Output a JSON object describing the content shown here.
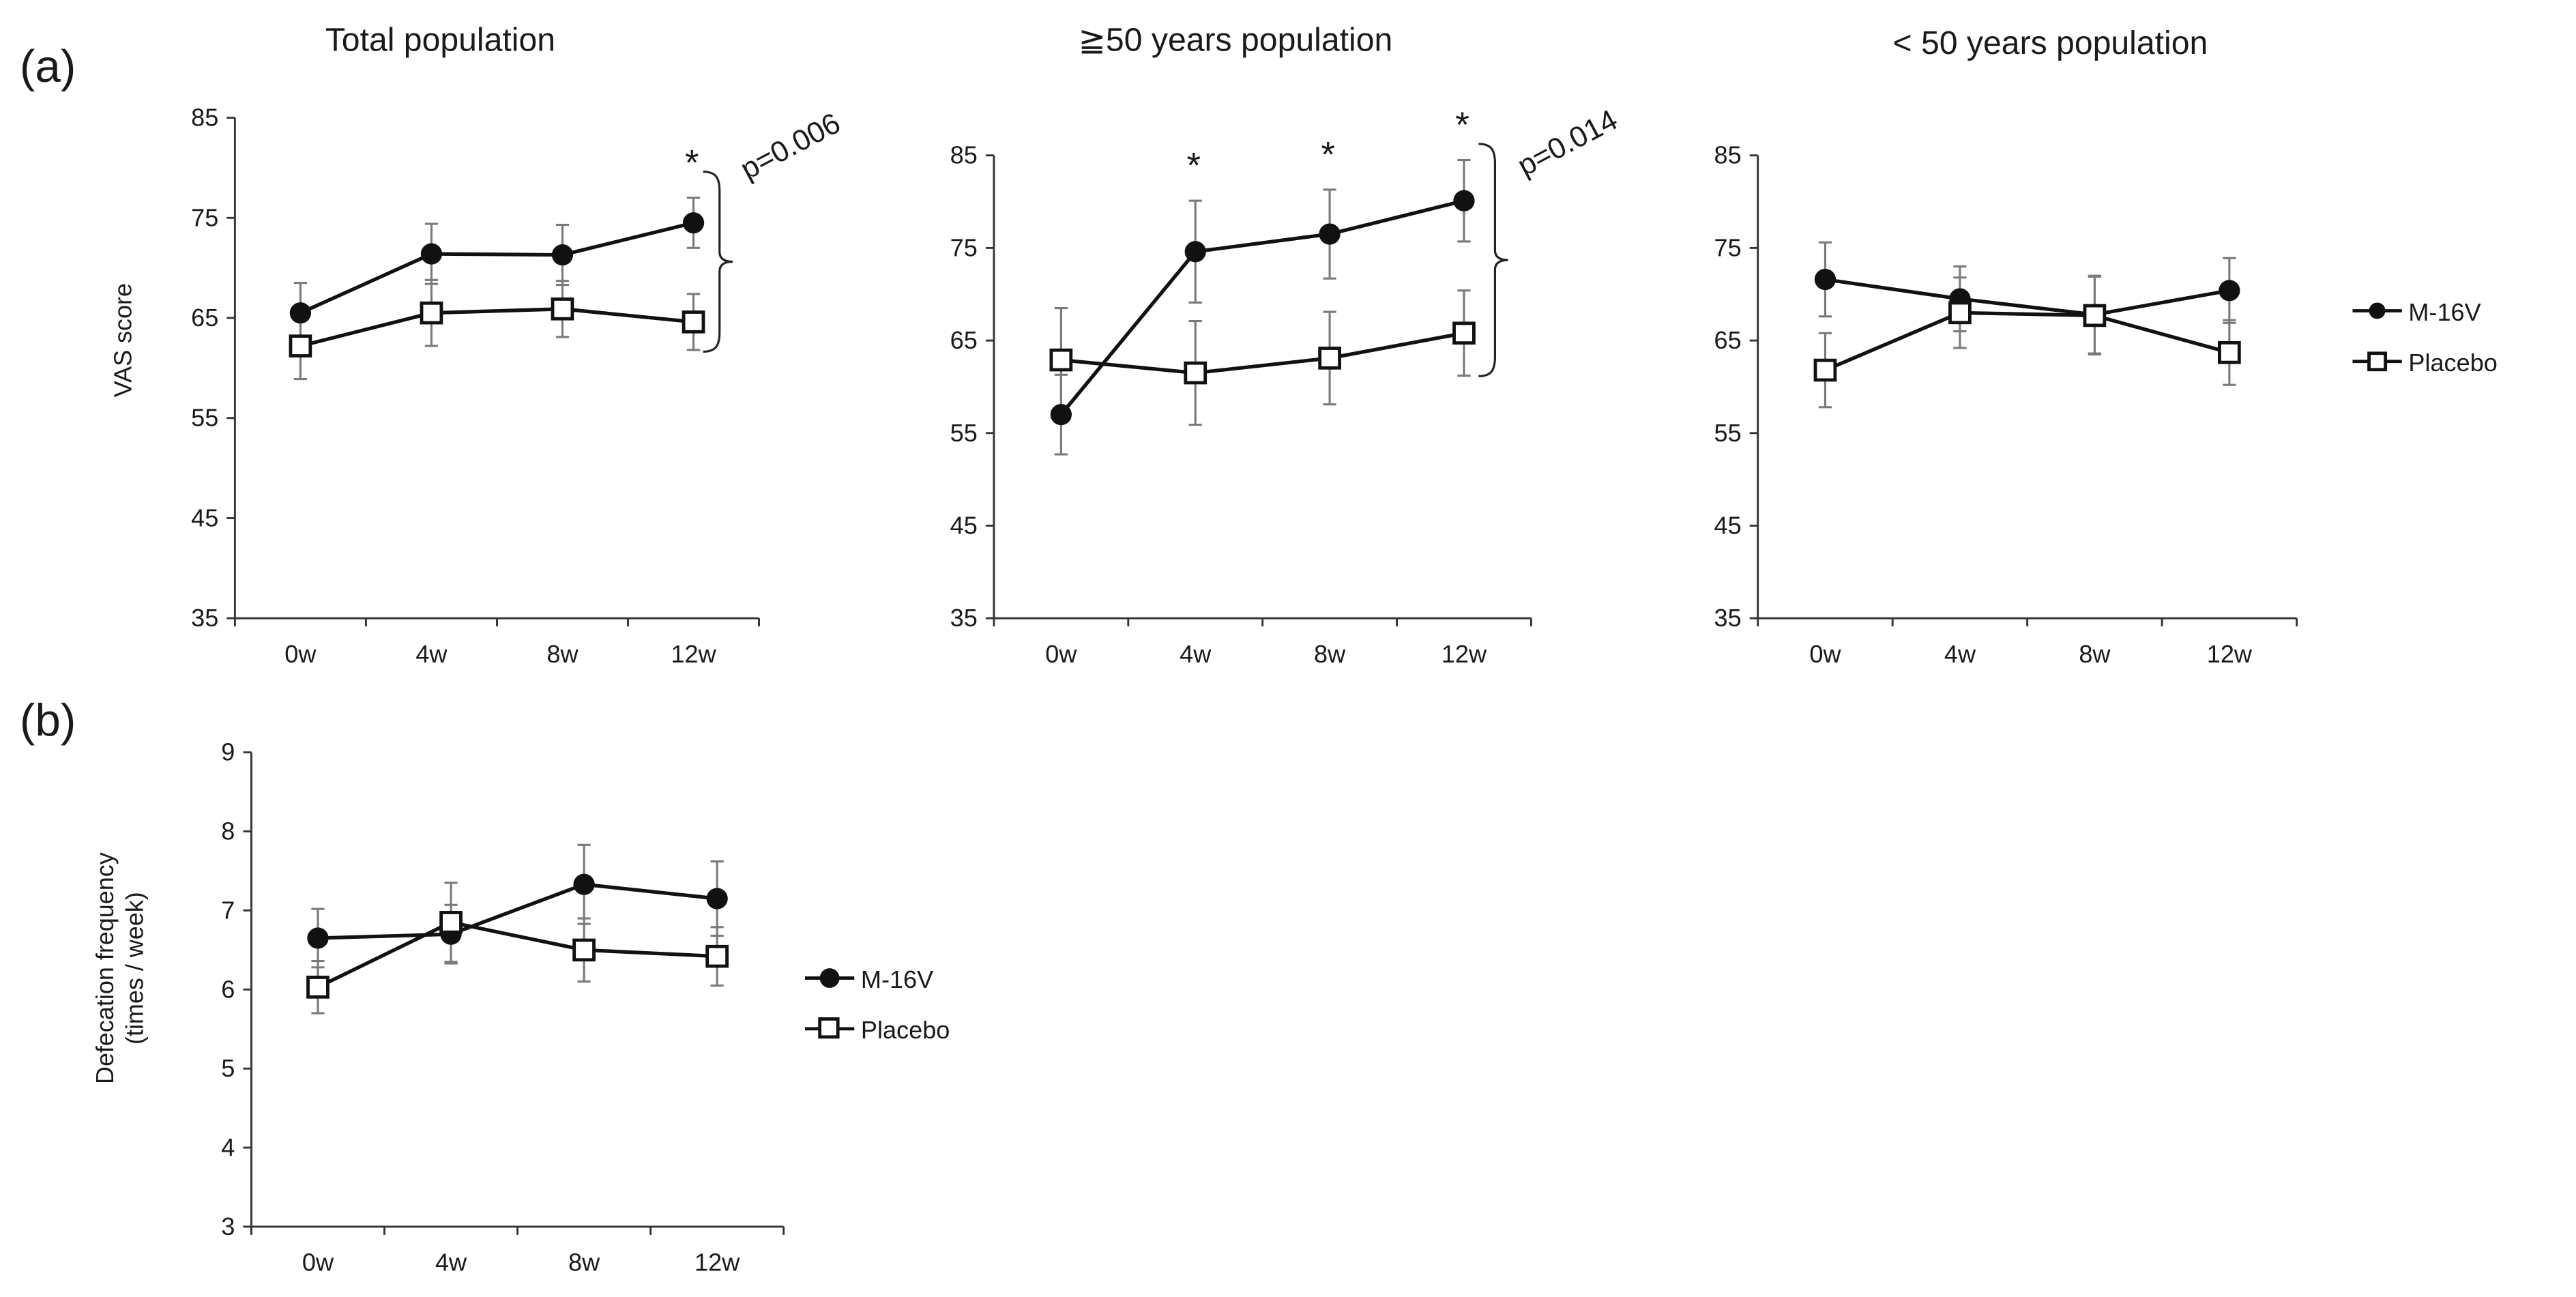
{
  "panel_labels": {
    "a": "(a)",
    "b": "(b)"
  },
  "legend": {
    "m16v": "M-16V",
    "placebo": "Placebo"
  },
  "chart_data": [
    {
      "type": "line",
      "id": "total",
      "title": "Total population",
      "xlabel": "",
      "ylabel": "VAS score",
      "categories": [
        "0w",
        "4w",
        "8w",
        "12w"
      ],
      "ylim": [
        35,
        85
      ],
      "yticks": [
        35,
        45,
        55,
        65,
        75,
        85
      ],
      "series": [
        {
          "name": "M-16V",
          "marker": "filled-circle",
          "values": [
            65.5,
            71.4,
            71.3,
            74.5
          ],
          "errors": [
            3.0,
            3.0,
            3.0,
            2.5
          ]
        },
        {
          "name": "Placebo",
          "marker": "open-square",
          "values": [
            62.2,
            65.5,
            65.9,
            64.6
          ],
          "errors": [
            3.3,
            3.3,
            2.8,
            2.8
          ]
        }
      ],
      "asterisks": [
        "12w"
      ],
      "pvalue": "p=0.006"
    },
    {
      "type": "line",
      "id": "over50",
      "title": "≧50 years population",
      "xlabel": "",
      "ylabel": "",
      "categories": [
        "0w",
        "4w",
        "8w",
        "12w"
      ],
      "ylim": [
        35,
        85
      ],
      "yticks": [
        35,
        45,
        55,
        65,
        75,
        85
      ],
      "series": [
        {
          "name": "M-16V",
          "marker": "filled-circle",
          "values": [
            57.0,
            74.6,
            76.5,
            80.1
          ],
          "errors": [
            4.3,
            5.5,
            4.8,
            4.4
          ]
        },
        {
          "name": "Placebo",
          "marker": "open-square",
          "values": [
            62.9,
            61.5,
            63.1,
            65.8
          ],
          "errors": [
            5.6,
            5.6,
            5.0,
            4.6
          ]
        }
      ],
      "asterisks": [
        "4w",
        "8w",
        "12w"
      ],
      "pvalue": "p=0.014"
    },
    {
      "type": "line",
      "id": "under50",
      "title": "< 50 years population",
      "xlabel": "",
      "ylabel": "",
      "categories": [
        "0w",
        "4w",
        "8w",
        "12w"
      ],
      "ylim": [
        35,
        85
      ],
      "yticks": [
        35,
        45,
        55,
        65,
        75,
        85
      ],
      "series": [
        {
          "name": "M-16V",
          "marker": "filled-circle",
          "values": [
            71.6,
            69.5,
            67.8,
            70.4
          ],
          "errors": [
            4.0,
            3.5,
            4.2,
            3.5
          ]
        },
        {
          "name": "Placebo",
          "marker": "open-square",
          "values": [
            61.8,
            68.0,
            67.7,
            63.7
          ],
          "errors": [
            4.0,
            3.8,
            4.2,
            3.5
          ]
        }
      ],
      "asterisks": [],
      "pvalue": ""
    },
    {
      "type": "line",
      "id": "defecation",
      "title": "",
      "xlabel": "",
      "ylabel": "Defecation frequency\n(times / week)",
      "categories": [
        "0w",
        "4w",
        "8w",
        "12w"
      ],
      "ylim": [
        3,
        9
      ],
      "yticks": [
        3,
        4,
        5,
        6,
        7,
        8,
        9
      ],
      "series": [
        {
          "name": "M-16V",
          "marker": "filled-circle",
          "values": [
            6.65,
            6.7,
            7.33,
            7.15
          ],
          "errors": [
            0.37,
            0.37,
            0.5,
            0.47
          ]
        },
        {
          "name": "Placebo",
          "marker": "open-square",
          "values": [
            6.03,
            6.85,
            6.5,
            6.42
          ],
          "errors": [
            0.33,
            0.5,
            0.4,
            0.37
          ]
        }
      ],
      "asterisks": [],
      "pvalue": ""
    }
  ]
}
